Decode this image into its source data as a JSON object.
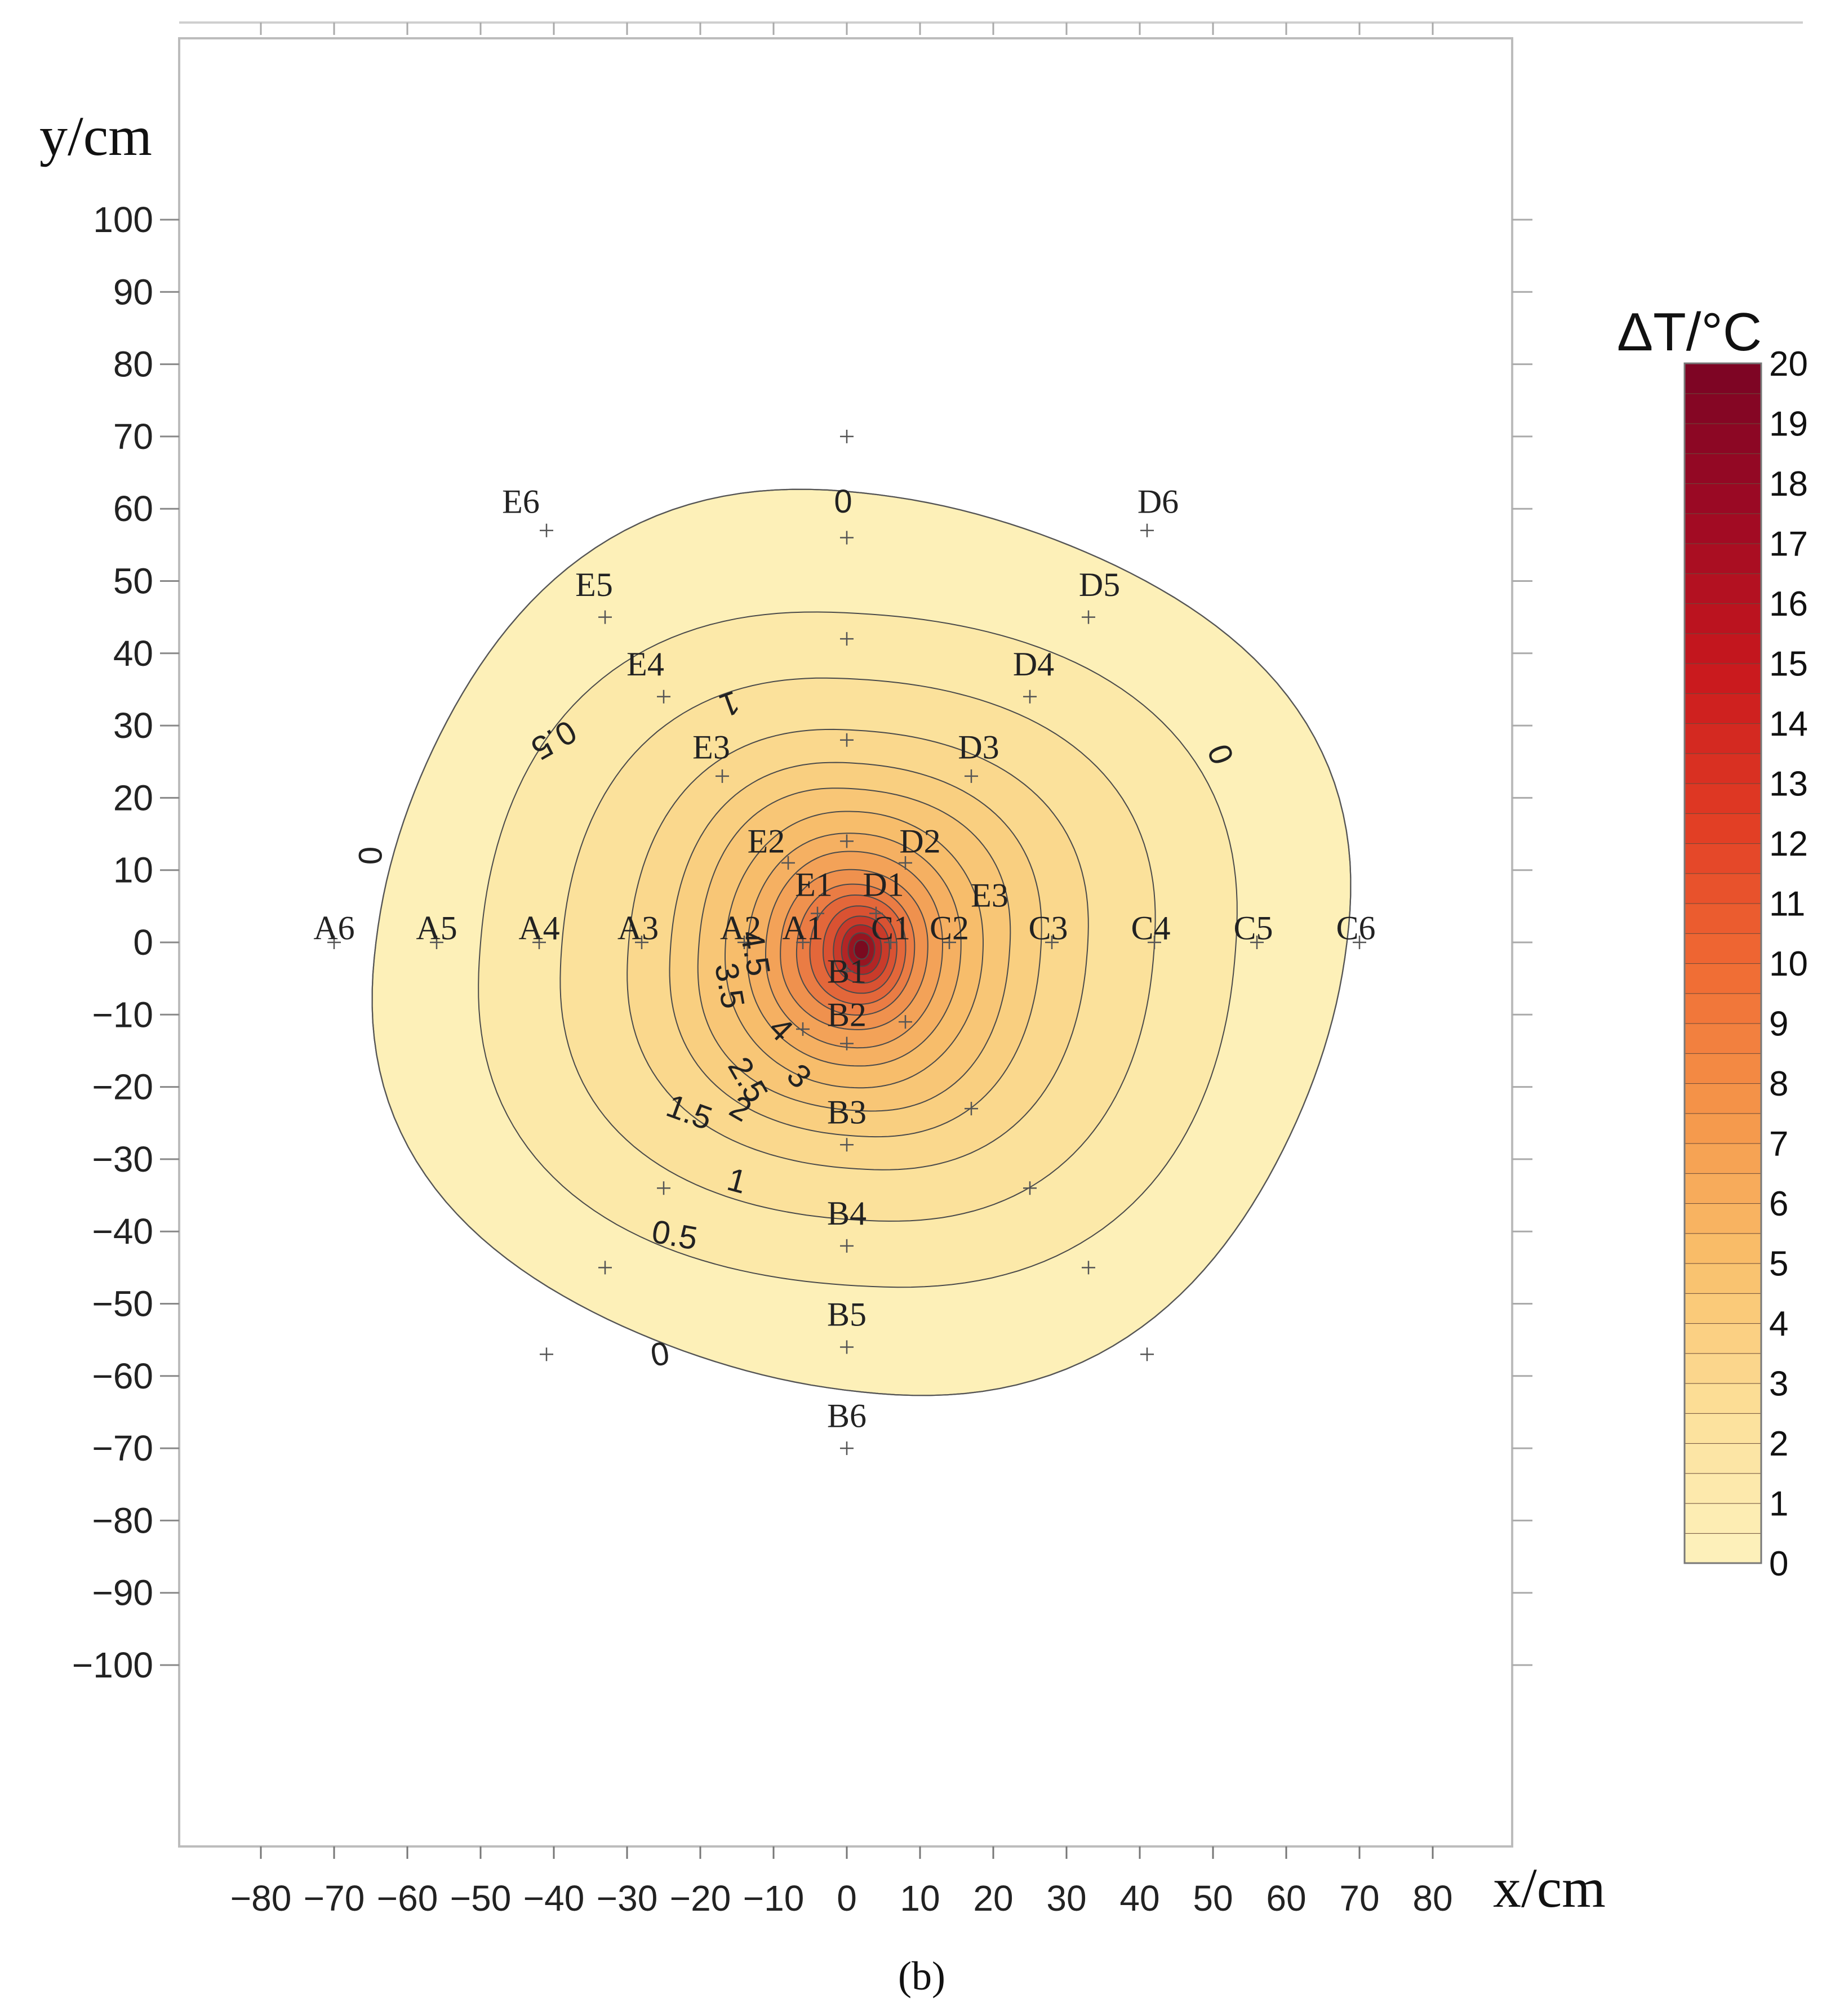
{
  "chart_data": {
    "type": "contour",
    "xlabel": "x/cm",
    "ylabel": "y/cm",
    "caption": "(b)",
    "xlim": [
      -90,
      90
    ],
    "ylim": [
      -125,
      125
    ],
    "x_ticks": [
      -80,
      -70,
      -60,
      -50,
      -40,
      -30,
      -20,
      -10,
      0,
      10,
      20,
      30,
      40,
      50,
      60,
      70,
      80
    ],
    "y_ticks": [
      100,
      90,
      80,
      70,
      60,
      50,
      40,
      30,
      20,
      10,
      0,
      -10,
      -20,
      -30,
      -40,
      -50,
      -60,
      -70,
      -80,
      -90,
      -100
    ],
    "colorbar": {
      "title": "ΔT/°C",
      "min": 0,
      "max": 20,
      "ticks": [
        0,
        1,
        2,
        3,
        4,
        5,
        6,
        7,
        8,
        9,
        10,
        11,
        12,
        13,
        14,
        15,
        16,
        17,
        18,
        19,
        20
      ],
      "colors": [
        "#fdf2bd",
        "#fce09a",
        "#f9c06b",
        "#f5964a",
        "#ef6a33",
        "#e03a24",
        "#c7171d",
        "#9e0a24",
        "#7a0424"
      ]
    },
    "peak": {
      "x": 0,
      "y": 0,
      "value": 20
    },
    "contour_levels": [
      0,
      0.5,
      1,
      1.5,
      2,
      2.5,
      3,
      3.5,
      4,
      4.5,
      5,
      6,
      7,
      8,
      9,
      10,
      11,
      12,
      14,
      16,
      18,
      20
    ],
    "contour_labels": [
      {
        "text": "0",
        "x": -0.5,
        "y": 61,
        "rot": 0
      },
      {
        "text": "0",
        "x": 51,
        "y": 26,
        "rot": 70
      },
      {
        "text": "0",
        "x": -65,
        "y": 12,
        "rot": -90
      },
      {
        "text": "0",
        "x": -25.5,
        "y": -57,
        "rot": -10
      },
      {
        "text": "0.5",
        "x": -40,
        "y": 28,
        "rot": 150
      },
      {
        "text": "0.5",
        "x": -23.5,
        "y": -40.5,
        "rot": 10
      },
      {
        "text": "1",
        "x": -16,
        "y": 33,
        "rot": 160
      },
      {
        "text": "1",
        "x": -15,
        "y": -33,
        "rot": 15
      },
      {
        "text": "1.5",
        "x": -21.5,
        "y": -23.5,
        "rot": 20
      },
      {
        "text": "2",
        "x": -14.5,
        "y": -23,
        "rot": 30
      },
      {
        "text": "2.5",
        "x": -13.5,
        "y": -19,
        "rot": 60
      },
      {
        "text": "3",
        "x": -6.5,
        "y": -18.5,
        "rot": 45
      },
      {
        "text": "3.5",
        "x": -16,
        "y": -6,
        "rot": 80
      },
      {
        "text": "4",
        "x": -9,
        "y": -12,
        "rot": 45
      },
      {
        "text": "4.5",
        "x": -12.5,
        "y": -1.5,
        "rot": 80
      }
    ],
    "measurement_points": [
      {
        "label": "A6",
        "x": -70,
        "y": 0,
        "lx": -70,
        "ly": 2
      },
      {
        "label": "A5",
        "x": -56,
        "y": 0,
        "lx": -56,
        "ly": 2
      },
      {
        "label": "A4",
        "x": -42,
        "y": 0,
        "lx": -42,
        "ly": 2
      },
      {
        "label": "A3",
        "x": -28,
        "y": 0,
        "lx": -28.5,
        "ly": 2
      },
      {
        "label": "A2",
        "x": -14,
        "y": 0,
        "lx": -14.5,
        "ly": 2
      },
      {
        "label": "A1",
        "x": -6,
        "y": 0,
        "lx": -6,
        "ly": 2
      },
      {
        "label": "B1",
        "x": 0,
        "y": -4,
        "lx": 0,
        "ly": -4
      },
      {
        "label": "B2",
        "x": 0,
        "y": -14,
        "lx": 0,
        "ly": -10
      },
      {
        "label": "B3",
        "x": 0,
        "y": -28,
        "lx": 0,
        "ly": -23.5
      },
      {
        "label": "B4",
        "x": 0,
        "y": -42,
        "lx": 0,
        "ly": -37.5
      },
      {
        "label": "B5",
        "x": 0,
        "y": -56,
        "lx": 0,
        "ly": -51.5
      },
      {
        "label": "B6",
        "x": 0,
        "y": -70,
        "lx": 0,
        "ly": -65.5
      },
      {
        "label": "C1",
        "x": 6,
        "y": 0,
        "lx": 6,
        "ly": 2
      },
      {
        "label": "C2",
        "x": 14,
        "y": 0,
        "lx": 14,
        "ly": 2
      },
      {
        "label": "C3",
        "x": 28,
        "y": 0,
        "lx": 27.5,
        "ly": 2
      },
      {
        "label": "C4",
        "x": 42,
        "y": 0,
        "lx": 41.5,
        "ly": 2
      },
      {
        "label": "C5",
        "x": 56,
        "y": 0,
        "lx": 55.5,
        "ly": 2
      },
      {
        "label": "C6",
        "x": 70,
        "y": 0,
        "lx": 69.5,
        "ly": 2
      },
      {
        "label": "D1",
        "x": 4,
        "y": 4,
        "lx": 5,
        "ly": 8
      },
      {
        "label": "D2",
        "x": 8,
        "y": 11,
        "lx": 10,
        "ly": 14
      },
      {
        "label": "D3",
        "x": 17,
        "y": 23,
        "lx": 18,
        "ly": 27
      },
      {
        "label": "D4",
        "x": 25,
        "y": 34,
        "lx": 25.5,
        "ly": 38.5
      },
      {
        "label": "D5",
        "x": 33,
        "y": 45,
        "lx": 34.5,
        "ly": 49.5
      },
      {
        "label": "D6",
        "x": 41,
        "y": 57,
        "lx": 42.5,
        "ly": 61
      },
      {
        "label": "E1",
        "x": -4,
        "y": 4,
        "lx": -4.5,
        "ly": 8
      },
      {
        "label": "E2",
        "x": -8,
        "y": 11,
        "lx": -11,
        "ly": 14
      },
      {
        "label": "E3",
        "x": -17,
        "y": 23,
        "lx": -18.5,
        "ly": 27
      },
      {
        "label": "E3",
        "x": 17,
        "y": -23,
        "lx": 19.5,
        "ly": 6.5
      },
      {
        "label": "E4",
        "x": -25,
        "y": 34,
        "lx": -27.5,
        "ly": 38.5
      },
      {
        "label": "E5",
        "x": -33,
        "y": 45,
        "lx": -34.5,
        "ly": 49.5
      },
      {
        "label": "E6",
        "x": -41,
        "y": 57,
        "lx": -44.5,
        "ly": 61
      },
      {
        "label": "",
        "x": 0,
        "y": 70,
        "lx": 0,
        "ly": 70
      },
      {
        "label": "",
        "x": -6,
        "y": -12,
        "lx": 0,
        "ly": 0
      },
      {
        "label": "",
        "x": 8,
        "y": -11,
        "lx": 0,
        "ly": 0
      },
      {
        "label": "",
        "x": 0,
        "y": 14,
        "lx": 0,
        "ly": 0
      },
      {
        "label": "",
        "x": 0,
        "y": 28,
        "lx": 0,
        "ly": 0
      },
      {
        "label": "",
        "x": 0,
        "y": 42,
        "lx": 0,
        "ly": 0
      },
      {
        "label": "",
        "x": 0,
        "y": 56,
        "lx": 0,
        "ly": 0
      },
      {
        "label": "",
        "x": -25,
        "y": -34,
        "lx": 0,
        "ly": 0
      },
      {
        "label": "",
        "x": 25,
        "y": -34,
        "lx": 0,
        "ly": 0
      },
      {
        "label": "",
        "x": -33,
        "y": -45,
        "lx": 0,
        "ly": 0
      },
      {
        "label": "",
        "x": 33,
        "y": -45,
        "lx": 0,
        "ly": 0
      },
      {
        "label": "",
        "x": -41,
        "y": -57,
        "lx": 0,
        "ly": 0
      },
      {
        "label": "",
        "x": 41,
        "y": -57,
        "lx": 0,
        "ly": 0
      }
    ]
  }
}
